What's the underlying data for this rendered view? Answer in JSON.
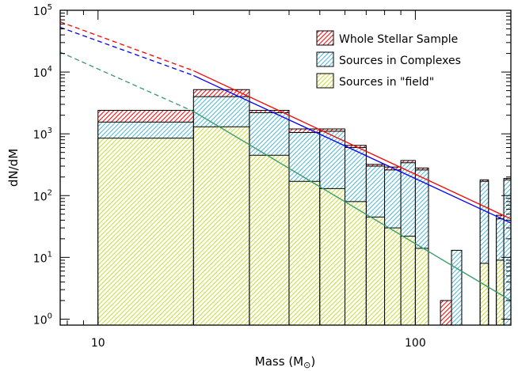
{
  "chart_data": {
    "type": "bar",
    "title": "",
    "xlabel": "Mass (M",
    "xlabel_symbol": "⊙",
    "xlabel_close": ")",
    "ylabel": "dN/dM",
    "x_scale": "log",
    "y_scale": "log",
    "xlim": [
      7.6,
      200
    ],
    "ylim": [
      0.8,
      100000
    ],
    "grid": false,
    "legend_position": "top-right",
    "x_ticks": [
      {
        "value": 10,
        "label": "10"
      },
      {
        "value": 100,
        "label": "100"
      }
    ],
    "y_ticks": [
      {
        "value": 1,
        "base": "10",
        "exp": "0"
      },
      {
        "value": 10,
        "base": "10",
        "exp": "1"
      },
      {
        "value": 100,
        "base": "10",
        "exp": "2"
      },
      {
        "value": 1000,
        "base": "10",
        "exp": "3"
      },
      {
        "value": 10000,
        "base": "10",
        "exp": "4"
      },
      {
        "value": 100000,
        "base": "10",
        "exp": "5"
      }
    ],
    "bin_edges": [
      10,
      20,
      30,
      40,
      50,
      60,
      70,
      80,
      90,
      100,
      110,
      120,
      130,
      140,
      150,
      160,
      170,
      180,
      190,
      200
    ],
    "series": [
      {
        "name": "Whole Stellar Sample",
        "color": "#ff0000",
        "values": [
          2400,
          5200,
          2400,
          1200,
          1200,
          650,
          320,
          290,
          370,
          280,
          0,
          2,
          13,
          0,
          0,
          180,
          0,
          48,
          190
        ]
      },
      {
        "name": "Sources in Complexes",
        "color": "#4fb4d8",
        "values": [
          1550,
          4000,
          2200,
          1050,
          1100,
          600,
          300,
          260,
          340,
          260,
          0,
          0,
          13,
          0,
          0,
          170,
          0,
          42,
          180
        ]
      },
      {
        "name": "Sources in \"field\"",
        "color": "#ccdd44",
        "values": [
          850,
          1300,
          450,
          170,
          130,
          80,
          45,
          30,
          22,
          14,
          0,
          0,
          0,
          0,
          0,
          8,
          0,
          9,
          0
        ]
      }
    ],
    "fit_lines": [
      {
        "series": "Whole Stellar Sample",
        "color": "#ff0000",
        "points": [
          [
            7.6,
            65000
          ],
          [
            20,
            10500
          ],
          [
            200,
            42
          ]
        ]
      },
      {
        "series": "Sources in Complexes",
        "color": "#0000ff",
        "points": [
          [
            7.6,
            53000
          ],
          [
            20,
            8800
          ],
          [
            200,
            36
          ]
        ]
      },
      {
        "series": "Sources in \"field\"",
        "color": "#339966",
        "points": [
          [
            7.6,
            21000
          ],
          [
            20,
            2300
          ],
          [
            200,
            2
          ]
        ]
      }
    ]
  }
}
